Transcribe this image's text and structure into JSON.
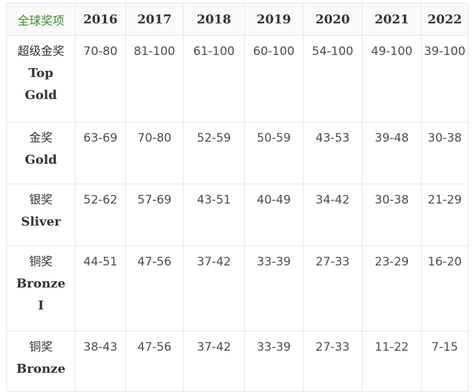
{
  "table": {
    "corner_header": "全球奖项",
    "years": [
      "2016",
      "2017",
      "2018",
      "2019",
      "2020",
      "2021",
      "2022"
    ],
    "rows": [
      {
        "label_cn": "超级金奖",
        "label_en": [
          "Top",
          "Gold"
        ],
        "values": [
          "70-80",
          "81-100",
          "61-100",
          "60-100",
          "54-100",
          "49-100",
          "39-100"
        ]
      },
      {
        "label_cn": "金奖",
        "label_en": [
          "Gold"
        ],
        "values": [
          "63-69",
          "70-80",
          "52-59",
          "50-59",
          "43-53",
          "39-48",
          "30-38"
        ]
      },
      {
        "label_cn": "银奖",
        "label_en": [
          "Sliver"
        ],
        "values": [
          "52-62",
          "57-69",
          "43-51",
          "40-49",
          "34-42",
          "30-38",
          "21-29"
        ]
      },
      {
        "label_cn": "铜奖",
        "label_en": [
          "Bronze",
          "I"
        ],
        "values": [
          "44-51",
          "47-56",
          "37-42",
          "33-39",
          "27-33",
          "23-29",
          "16-20"
        ]
      },
      {
        "label_cn": "铜奖",
        "label_en": [
          "Bronze"
        ],
        "values": [
          "38-43",
          "47-56",
          "37-42",
          "33-39",
          "27-33",
          "11-22",
          "7-15"
        ]
      }
    ]
  }
}
